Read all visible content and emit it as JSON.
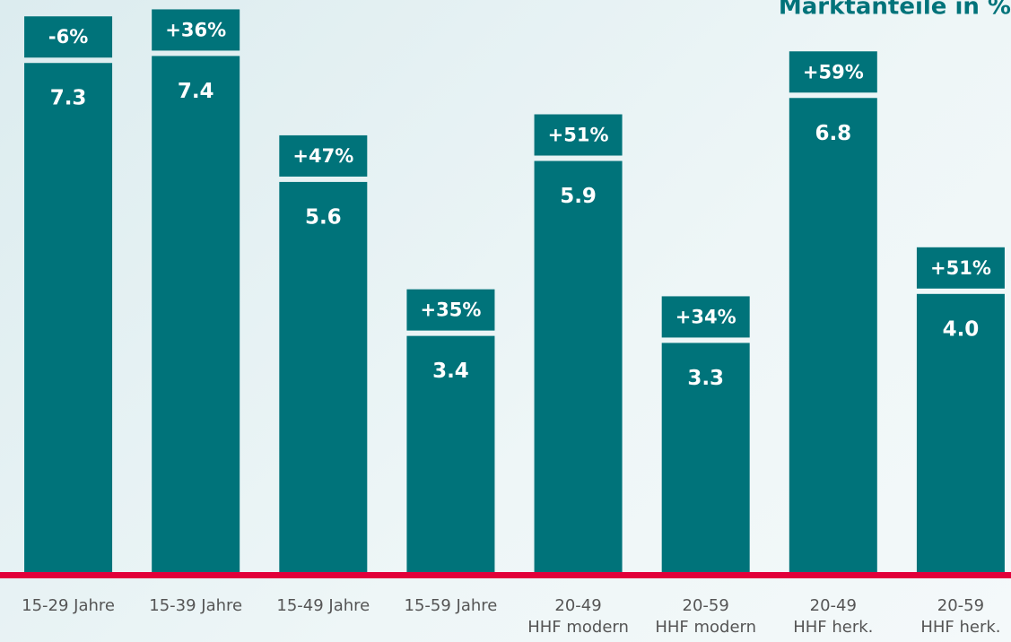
{
  "chart_data": {
    "type": "bar",
    "title": "Marktanteile in %",
    "categories": [
      "15-29 Jahre",
      "15-39 Jahre",
      "15-49 Jahre",
      "15-59 Jahre",
      "20-49\nHHF modern",
      "20-59\nHHF modern",
      "20-49\nHHF herk.",
      "20-59\nHHF herk."
    ],
    "values": [
      7.3,
      7.4,
      5.6,
      3.4,
      5.9,
      3.3,
      6.8,
      4.0
    ],
    "value_labels": [
      "7.3",
      "7.4",
      "5.6",
      "3.4",
      "5.9",
      "3.3",
      "6.8",
      "4.0"
    ],
    "changes": [
      -6,
      36,
      47,
      35,
      51,
      34,
      59,
      51
    ],
    "change_labels": [
      "-6%",
      "+36%",
      "+47%",
      "+35%",
      "+51%",
      "+34%",
      "+59%",
      "+51%"
    ],
    "color": "#00737a",
    "baseline_color": "#e2003a",
    "ylim": [
      0,
      8.2
    ]
  }
}
